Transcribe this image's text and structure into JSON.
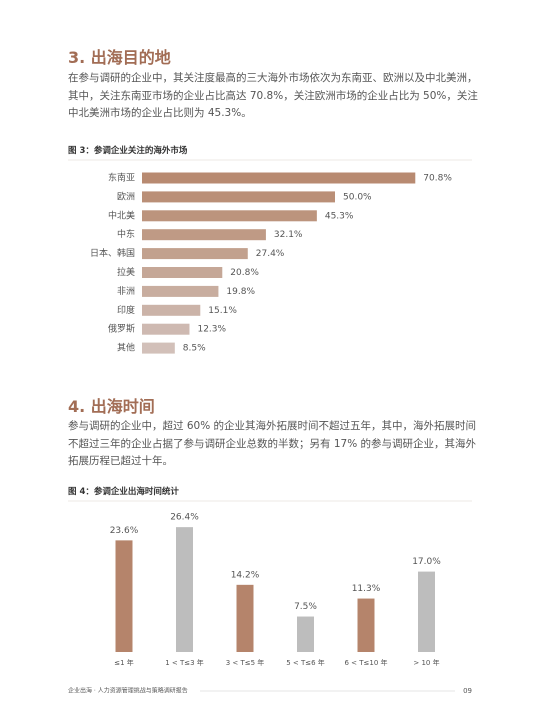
{
  "sections": [
    {
      "title": "3. 出海目的地",
      "paragraph": "在参与调研的企业中，其关注度最高的三大海外市场依次为东南亚、欧洲以及中北美洲，其中，关注东南亚市场的企业占比高达 70.8%，关注欧洲市场的企业占比为 50%，关注中北美洲市场的企业占比则为 45.3%。",
      "figure": {
        "caption": "图 3：参调企业关注的海外市场",
        "chart": {
          "type": "bar",
          "orientation": "horizontal",
          "categories": [
            "东南亚",
            "欧洲",
            "中北美",
            "中东",
            "日本、韩国",
            "拉美",
            "非洲",
            "印度",
            "俄罗斯",
            "其他"
          ],
          "values": [
            70.8,
            50.0,
            45.3,
            32.1,
            27.4,
            20.8,
            19.8,
            15.1,
            12.3,
            8.5
          ],
          "value_labels": [
            "70.8%",
            "50.0%",
            "45.3%",
            "32.1%",
            "27.4%",
            "20.8%",
            "19.8%",
            "15.1%",
            "12.3%",
            "8.5%"
          ],
          "colors": [
            "#b88a71",
            "#ba8f77",
            "#bc947d",
            "#bf9a85",
            "#c2a18e",
            "#c5a797",
            "#c8ad9f",
            "#cbb3a8",
            "#ceb9b1",
            "#d2c0b9"
          ]
        }
      }
    },
    {
      "title": "4. 出海时间",
      "paragraph": "参与调研的企业中，超过 60% 的企业其海外拓展时间不超过五年，其中，海外拓展时间不超过三年的企业占据了参与调研企业总数的半数；另有 17% 的参与调研企业，其海外拓展历程已超过十年。",
      "figure": {
        "caption": "图 4：参调企业出海时间统计",
        "chart": {
          "type": "bar",
          "orientation": "vertical",
          "categories": [
            "≤1 年",
            "1 < T≤3 年",
            "3 < T≤5 年",
            "5 < T≤6 年",
            "6 < T≤10 年",
            "> 10 年"
          ],
          "values": [
            23.6,
            26.4,
            14.2,
            7.5,
            11.3,
            17.0
          ],
          "value_labels": [
            "23.6%",
            "26.4%",
            "14.2%",
            "7.5%",
            "11.3%",
            "17.0%"
          ],
          "colors": [
            "#b5846b",
            "#bdbdbd",
            "#b5846b",
            "#bdbdbd",
            "#b5846b",
            "#bdbdbd"
          ]
        }
      }
    }
  ],
  "footer": {
    "text": "企业出海 · 人力资源管理挑战与策略调研报告",
    "page": "09"
  }
}
